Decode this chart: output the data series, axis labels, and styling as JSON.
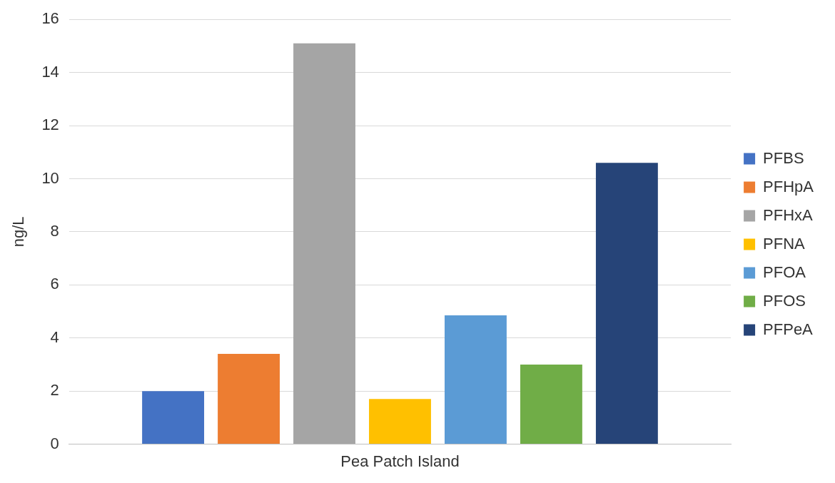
{
  "chart_data": {
    "type": "bar",
    "ylabel": "ng/L",
    "categories": [
      "Pea Patch Island"
    ],
    "series": [
      {
        "name": "PFBS",
        "color": "#4472c4",
        "values": [
          2.0
        ]
      },
      {
        "name": "PFHpA",
        "color": "#ed7d31",
        "values": [
          3.4
        ]
      },
      {
        "name": "PFHxA",
        "color": "#a5a5a5",
        "values": [
          15.1
        ]
      },
      {
        "name": "PFNA",
        "color": "#ffc000",
        "values": [
          1.7
        ]
      },
      {
        "name": "PFOA",
        "color": "#5b9bd5",
        "values": [
          4.85
        ]
      },
      {
        "name": "PFOS",
        "color": "#70ad47",
        "values": [
          3.0
        ]
      },
      {
        "name": "PFPeA",
        "color": "#264478",
        "values": [
          10.6
        ]
      }
    ],
    "ylim": [
      0,
      16
    ],
    "yticks": [
      0,
      2,
      4,
      6,
      8,
      10,
      12,
      14,
      16
    ],
    "grid": "y",
    "legend": "right"
  }
}
